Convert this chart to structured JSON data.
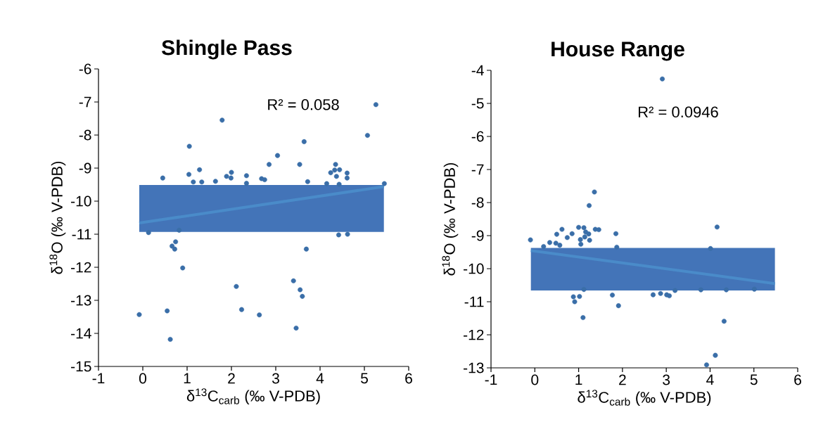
{
  "chart_data": [
    {
      "type": "scatter",
      "title": "Shingle Pass",
      "xlabel": "δ$^{13}$C$_{carb}$ (‰ V-PDB)",
      "ylabel": "δ$^{18}$O (‰ V-PDB)",
      "xlim": [
        -1,
        6
      ],
      "xticks": [
        -1,
        0,
        1,
        2,
        3,
        4,
        5,
        6
      ],
      "ylim": [
        -15,
        -6
      ],
      "yticks": [
        -15,
        -14,
        -13,
        -12,
        -11,
        -10,
        -9,
        -8,
        -7,
        -6
      ],
      "annotations": [
        "R² = 0.058"
      ],
      "bands": [
        {
          "axis": "y",
          "from": -10.93,
          "to": -9.51,
          "color": "#4374b8"
        }
      ],
      "series": [
        {
          "color": "#3a6ea8",
          "x": [
            0.45,
            1.05,
            1.04,
            1.14,
            1.28,
            1.33,
            1.64,
            1.79,
            1.89,
            1.99,
            2.0,
            2.34,
            2.34,
            2.68,
            2.75,
            2.85,
            3.04,
            3.54,
            3.64,
            3.72,
            4.24,
            4.35,
            4.33,
            4.44,
            4.37,
            4.61,
            4.61,
            4.43,
            5.07,
            5.26,
            5.45,
            4.15,
            0.13,
            0.82,
            0.74,
            0.66,
            0.72,
            0.9,
            -0.08,
            0.55,
            0.62,
            2.11,
            2.23,
            2.63,
            3.4,
            3.55,
            3.6,
            3.46,
            3.69,
            4.42,
            4.62
          ],
          "values": [
            -9.3,
            -8.34,
            -9.19,
            -9.42,
            -9.05,
            -9.42,
            -9.4,
            -7.55,
            -9.25,
            -9.3,
            -9.13,
            -9.23,
            -9.46,
            -9.32,
            -9.35,
            -8.89,
            -8.62,
            -8.89,
            -8.2,
            -9.41,
            -9.14,
            -8.89,
            -9.06,
            -9.05,
            -9.25,
            -9.15,
            -9.3,
            -9.49,
            -8.01,
            -7.08,
            -9.47,
            -9.47,
            -10.95,
            -10.88,
            -11.23,
            -11.36,
            -11.45,
            -12.02,
            -13.43,
            -13.32,
            -14.18,
            -12.58,
            -13.28,
            -13.44,
            -12.41,
            -12.68,
            -12.88,
            -13.84,
            -11.45,
            -11.02,
            -11.0
          ]
        },
        {
          "type": "line",
          "color": "#4a8bc9",
          "x": [
            -0.08,
            5.44
          ],
          "values": [
            -10.66,
            -9.56
          ]
        }
      ]
    },
    {
      "type": "scatter",
      "title": "House Range",
      "xlabel": "δ$^{13}$C$_{carb}$ (‰ V-PDB)",
      "ylabel": "δ$^{18}$O (‰ V-PDB)",
      "xlim": [
        -1,
        6
      ],
      "xticks": [
        -1,
        0,
        1,
        2,
        3,
        4,
        5,
        6
      ],
      "ylim": [
        -13,
        -4
      ],
      "yticks": [
        -13,
        -12,
        -11,
        -10,
        -9,
        -8,
        -7,
        -6,
        -5,
        -4
      ],
      "annotations": [
        "R² = 0.0946"
      ],
      "bands": [
        {
          "axis": "y",
          "from": -10.66,
          "to": -9.37,
          "color": "#4374b8"
        }
      ],
      "series": [
        {
          "color": "#3a6ea8",
          "x": [
            2.91,
            1.36,
            1.24,
            4.16,
            1.0,
            1.12,
            0.62,
            1.38,
            1.46,
            1.85,
            0.5,
            0.85,
            0.74,
            1.16,
            1.23,
            1.14,
            1.04,
            1.25,
            -0.1,
            0.34,
            0.2,
            0.48,
            0.57,
            1.05,
            1.87,
            4.01,
            0.88,
            1.02,
            0.91,
            1.77,
            1.91,
            1.1,
            2.7,
            2.87,
            3.01,
            3.07,
            4.32,
            4.12,
            3.92,
            3.79,
            4.37,
            5.01,
            3.2,
            1.12
          ],
          "values": [
            -4.26,
            -7.68,
            -8.09,
            -8.74,
            -8.75,
            -8.76,
            -8.81,
            -8.81,
            -8.82,
            -8.94,
            -8.96,
            -8.94,
            -9.06,
            -8.89,
            -8.95,
            -9.04,
            -9.12,
            -9.14,
            -9.13,
            -9.21,
            -9.33,
            -9.23,
            -9.29,
            -9.26,
            -9.35,
            -9.39,
            -10.85,
            -10.84,
            -11.0,
            -10.8,
            -11.12,
            -11.48,
            -10.79,
            -10.75,
            -10.79,
            -10.82,
            -11.59,
            -12.62,
            -12.91,
            -10.64,
            -10.64,
            -10.62,
            -10.66,
            -10.63
          ]
        },
        {
          "type": "line",
          "color": "#4a8bc9",
          "x": [
            -0.09,
            5.48
          ],
          "values": [
            -9.45,
            -10.45
          ]
        }
      ]
    }
  ]
}
